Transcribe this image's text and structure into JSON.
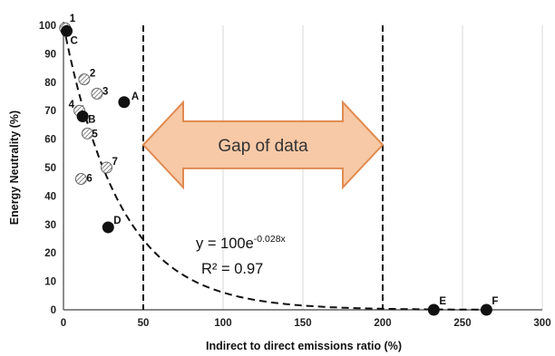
{
  "chart_data": {
    "type": "scatter",
    "title": "",
    "xlabel": "Indirect to direct emissions ratio (%)",
    "ylabel": "Energy Neutrality (%)",
    "xlim": [
      0,
      300
    ],
    "ylim": [
      0,
      100
    ],
    "xticks": [
      "0",
      "50",
      "100",
      "150",
      "200",
      "250",
      "300"
    ],
    "yticks": [
      "0",
      "10",
      "20",
      "30",
      "40",
      "50",
      "60",
      "70",
      "80",
      "90",
      "100"
    ],
    "grid": "vertical",
    "series": [
      {
        "style": "hatched",
        "points": [
          {
            "label": "1",
            "x": 1,
            "y": 99
          },
          {
            "label": "2",
            "x": 13,
            "y": 81
          },
          {
            "label": "3",
            "x": 21,
            "y": 76
          },
          {
            "label": "4",
            "x": 10,
            "y": 70
          },
          {
            "label": "5",
            "x": 15,
            "y": 62
          },
          {
            "label": "6",
            "x": 11,
            "y": 46
          },
          {
            "label": "7",
            "x": 27,
            "y": 50
          }
        ]
      },
      {
        "style": "filled",
        "points": [
          {
            "label": "C",
            "x": 2,
            "y": 98
          },
          {
            "label": "A",
            "x": 38,
            "y": 73
          },
          {
            "label": "B",
            "x": 12,
            "y": 68
          },
          {
            "label": "D",
            "x": 28,
            "y": 29
          },
          {
            "label": "E",
            "x": 232,
            "y": 0
          },
          {
            "label": "F",
            "x": 265,
            "y": 0
          }
        ]
      }
    ],
    "fit": {
      "equation_base": "y = 100e",
      "equation_exp": "-0.028x",
      "r2": "R² = 0.97",
      "a": 100,
      "b": -0.028
    },
    "dashed_lines_x": [
      50,
      200
    ],
    "annotation": {
      "text": "Gap of data",
      "from_x": 50,
      "to_x": 200,
      "y": 58
    }
  },
  "colors": {
    "arrow_fill": "#f7c9a6",
    "arrow_stroke": "#e08a50",
    "marker": "#111111",
    "grid": "#d9d9d9"
  }
}
